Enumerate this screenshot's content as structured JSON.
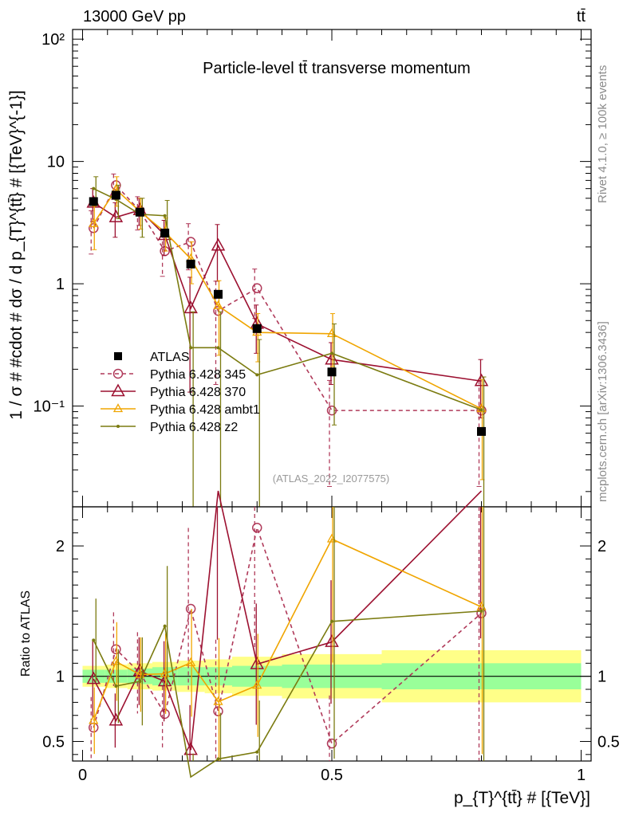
{
  "header": {
    "energy": "13000 GeV pp",
    "process": "tt̄"
  },
  "side_labels": {
    "rivet": "Rivet 4.1.0, ≥ 100k events",
    "mcplots": "mcplots.cern.ch [arXiv:1306.3436]"
  },
  "watermark": "(ATLAS_2022_I2077575)",
  "chart_data": {
    "type": "line",
    "title": "Particle-level tt̄ transverse momentum",
    "xlabel": "p_{T}^{tt̄} # [{TeV}]",
    "ylabel": "1 / σ # #cdot # dσ / d p_{T}^{tt̄} # [{TeV}^{-1}]",
    "ratio_ylabel": "Ratio to ATLAS",
    "xlim": [
      -0.02,
      1.02
    ],
    "ylim": [
      0.015,
      120
    ],
    "ratio_ylim": [
      0.35,
      2.3
    ],
    "yscale": "log",
    "x_ticks": [
      0,
      0.5,
      1
    ],
    "x_tick_labels": [
      "0",
      "0.5",
      "1"
    ],
    "y_ticks": [
      0.1,
      1,
      10,
      100
    ],
    "y_tick_labels": [
      "10⁻¹",
      "1",
      "10",
      "10²"
    ],
    "ratio_ticks": [
      0.5,
      1,
      2
    ],
    "ratio_tick_labels": [
      "0.5",
      "1",
      "2"
    ],
    "bins": [
      {
        "lo": 0.0,
        "hi": 0.045
      },
      {
        "lo": 0.045,
        "hi": 0.09
      },
      {
        "lo": 0.09,
        "hi": 0.14
      },
      {
        "lo": 0.14,
        "hi": 0.19
      },
      {
        "lo": 0.19,
        "hi": 0.245
      },
      {
        "lo": 0.245,
        "hi": 0.3
      },
      {
        "lo": 0.3,
        "hi": 0.4
      },
      {
        "lo": 0.4,
        "hi": 0.6
      },
      {
        "lo": 0.6,
        "hi": 1.0
      }
    ],
    "ratio_band_green": [
      0.05,
      0.05,
      0.06,
      0.07,
      0.07,
      0.07,
      0.08,
      0.09,
      0.1
    ],
    "ratio_band_yellow": [
      0.08,
      0.09,
      0.1,
      0.11,
      0.12,
      0.13,
      0.15,
      0.17,
      0.2
    ],
    "data": {
      "name": "ATLAS",
      "x": [
        0.022,
        0.067,
        0.115,
        0.165,
        0.217,
        0.272,
        0.35,
        0.5,
        0.8
      ],
      "y": [
        4.7,
        5.3,
        3.85,
        2.6,
        1.45,
        0.82,
        0.43,
        0.19,
        0.062
      ]
    },
    "series": [
      {
        "name": "Pythia 6.428 345",
        "color": "#b03a5a",
        "dashed": true,
        "marker": "circle",
        "x": [
          0.022,
          0.067,
          0.115,
          0.165,
          0.217,
          0.272,
          0.35,
          0.5,
          0.8
        ],
        "y": [
          2.85,
          6.4,
          3.95,
          1.85,
          2.2,
          0.6,
          0.92,
          0.092,
          0.092
        ],
        "err": [
          1.1,
          1.5,
          1.2,
          0.7,
          0.9,
          0.45,
          0.4,
          0.07,
          0.07
        ]
      },
      {
        "name": "Pythia 6.428 370",
        "color": "#9c1030",
        "dashed": false,
        "marker": "triangle",
        "x": [
          0.022,
          0.067,
          0.115,
          0.165,
          0.217,
          0.272,
          0.35,
          0.5,
          0.8
        ],
        "y": [
          4.6,
          3.5,
          4.0,
          2.5,
          0.63,
          2.05,
          0.47,
          0.24,
          0.16
        ],
        "err": [
          1.4,
          1.1,
          1.0,
          0.8,
          0.5,
          1.0,
          0.2,
          0.09,
          0.08
        ]
      },
      {
        "name": "Pythia 6.428 ambt1",
        "color": "#f0a500",
        "dashed": false,
        "marker": "triangle-small",
        "x": [
          0.022,
          0.067,
          0.115,
          0.165,
          0.217,
          0.272,
          0.35,
          0.5,
          0.8
        ],
        "y": [
          3.1,
          5.9,
          3.9,
          2.65,
          1.6,
          0.66,
          0.4,
          0.39,
          0.095
        ],
        "err": [
          1.2,
          1.6,
          1.1,
          0.8,
          0.6,
          0.4,
          0.17,
          0.18,
          0.07
        ]
      },
      {
        "name": "Pythia 6.428 z2",
        "color": "#7b7b10",
        "dashed": false,
        "marker": "dot",
        "x": [
          0.022,
          0.067,
          0.115,
          0.165,
          0.217,
          0.272,
          0.35,
          0.5,
          0.8
        ],
        "y": [
          6.0,
          4.9,
          3.7,
          3.6,
          0.3,
          0.3,
          0.18,
          0.27,
          0.093
        ],
        "err": [
          1.5,
          1.5,
          1.3,
          1.2,
          0.29,
          0.29,
          0.17,
          0.2,
          0.08
        ]
      }
    ]
  }
}
